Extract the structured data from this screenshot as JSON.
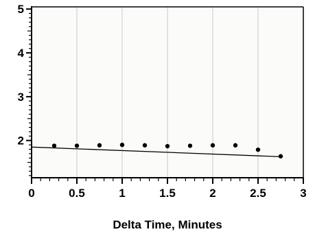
{
  "chart_data": {
    "type": "scatter",
    "title": "",
    "xlabel": "Delta Time, Minutes",
    "ylabel": "",
    "xlim": [
      0,
      3
    ],
    "ylim": [
      1.15,
      5.05
    ],
    "x_ticks": [
      0,
      0.5,
      1,
      1.5,
      2,
      2.5,
      3
    ],
    "x_tick_labels": [
      "0",
      "0.5",
      "1",
      "1.5",
      "2",
      "2.5",
      "3"
    ],
    "y_ticks": [
      2,
      3,
      4,
      5
    ],
    "y_tick_labels": [
      "2",
      "3",
      "4",
      "5"
    ],
    "grid": "vertical",
    "series": [
      {
        "x": [
          0.25,
          0.5,
          0.75,
          1.0,
          1.25,
          1.5,
          1.75,
          2.0,
          2.25,
          2.5,
          2.75
        ],
        "y": [
          1.88,
          1.88,
          1.89,
          1.9,
          1.89,
          1.87,
          1.88,
          1.89,
          1.89,
          1.79,
          1.64
        ]
      }
    ],
    "trendline": {
      "x": [
        0,
        2.75
      ],
      "y": [
        1.85,
        1.63
      ]
    },
    "colors": {
      "background": "#fbfbf9",
      "grid": "#c8c8c8",
      "marker": "#000000",
      "line": "#000000"
    }
  }
}
